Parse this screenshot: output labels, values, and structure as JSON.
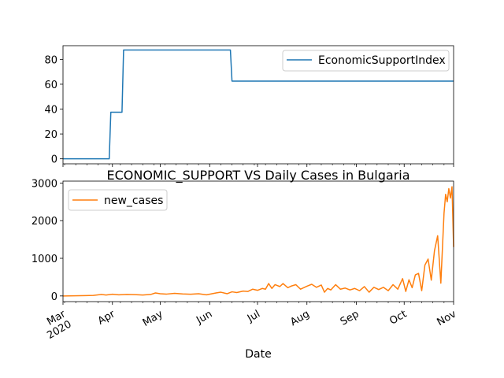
{
  "chart_data": [
    {
      "type": "line",
      "title": "",
      "xlabel": "",
      "ylabel": "",
      "xlim": [
        "2020-03-01",
        "2020-11-01"
      ],
      "ylim": [
        -4,
        91
      ],
      "yticks": [
        0,
        20,
        40,
        60,
        80
      ],
      "x_tick_labels_hidden": true,
      "legend_position": "upper right",
      "series": [
        {
          "name": "EconomicSupportIndex",
          "color": "#1f77b4",
          "x": [
            "2020-03-01",
            "2020-03-30",
            "2020-03-31",
            "2020-04-07",
            "2020-04-08",
            "2020-06-14",
            "2020-06-15",
            "2020-11-01"
          ],
          "y": [
            0,
            0,
            37.5,
            37.5,
            87.5,
            87.5,
            62.5,
            62.5
          ]
        }
      ]
    },
    {
      "type": "line",
      "title": "ECONOMIC_SUPPORT VS Daily Cases in Bulgaria",
      "xlabel": "Date",
      "ylabel": "",
      "xlim": [
        "2020-03-01",
        "2020-11-01"
      ],
      "ylim": [
        -150,
        3050
      ],
      "yticks": [
        0,
        1000,
        2000,
        3000
      ],
      "xtick_dates": [
        "2020-03-01",
        "2020-04-01",
        "2020-05-01",
        "2020-06-01",
        "2020-07-01",
        "2020-08-01",
        "2020-09-01",
        "2020-10-01",
        "2020-11-01"
      ],
      "xtick_labels": [
        "Mar\n2020",
        "Apr",
        "May",
        "Jun",
        "Jul",
        "Aug",
        "Sep",
        "Oct",
        "Nov"
      ],
      "legend_position": "upper left",
      "series": [
        {
          "name": "new_cases",
          "color": "#ff7f0e",
          "x": [
            "2020-03-01",
            "2020-03-08",
            "2020-03-15",
            "2020-03-20",
            "2020-03-25",
            "2020-03-28",
            "2020-04-01",
            "2020-04-05",
            "2020-04-10",
            "2020-04-15",
            "2020-04-20",
            "2020-04-25",
            "2020-04-28",
            "2020-05-01",
            "2020-05-05",
            "2020-05-10",
            "2020-05-15",
            "2020-05-20",
            "2020-05-25",
            "2020-05-30",
            "2020-06-05",
            "2020-06-08",
            "2020-06-12",
            "2020-06-15",
            "2020-06-18",
            "2020-06-22",
            "2020-06-25",
            "2020-06-28",
            "2020-07-01",
            "2020-07-04",
            "2020-07-06",
            "2020-07-08",
            "2020-07-10",
            "2020-07-12",
            "2020-07-15",
            "2020-07-17",
            "2020-07-20",
            "2020-07-22",
            "2020-07-25",
            "2020-07-28",
            "2020-08-01",
            "2020-08-04",
            "2020-08-07",
            "2020-08-10",
            "2020-08-12",
            "2020-08-14",
            "2020-08-16",
            "2020-08-19",
            "2020-08-22",
            "2020-08-25",
            "2020-08-28",
            "2020-08-31",
            "2020-09-03",
            "2020-09-06",
            "2020-09-09",
            "2020-09-12",
            "2020-09-15",
            "2020-09-18",
            "2020-09-21",
            "2020-09-24",
            "2020-09-27",
            "2020-09-30",
            "2020-10-02",
            "2020-10-04",
            "2020-10-06",
            "2020-10-08",
            "2020-10-10",
            "2020-10-12",
            "2020-10-14",
            "2020-10-16",
            "2020-10-18",
            "2020-10-20",
            "2020-10-22",
            "2020-10-24",
            "2020-10-26",
            "2020-10-27",
            "2020-10-28",
            "2020-10-29",
            "2020-10-30",
            "2020-10-31",
            "2020-11-01"
          ],
          "y": [
            0,
            5,
            10,
            15,
            40,
            25,
            45,
            30,
            40,
            35,
            25,
            40,
            80,
            60,
            50,
            70,
            55,
            45,
            60,
            30,
            80,
            100,
            60,
            110,
            90,
            130,
            120,
            180,
            150,
            200,
            180,
            330,
            200,
            300,
            250,
            330,
            220,
            260,
            300,
            180,
            260,
            310,
            230,
            290,
            100,
            200,
            160,
            300,
            180,
            210,
            160,
            200,
            140,
            250,
            100,
            230,
            170,
            230,
            140,
            300,
            180,
            460,
            120,
            430,
            220,
            560,
            600,
            140,
            820,
            980,
            420,
            1200,
            1600,
            340,
            2200,
            2700,
            2500,
            2850,
            2600,
            2900,
            1300
          ]
        }
      ]
    }
  ]
}
